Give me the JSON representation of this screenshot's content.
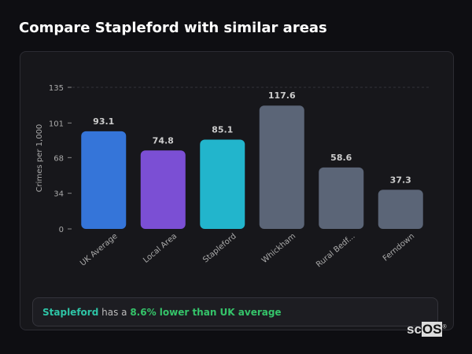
{
  "title": "Compare Stapleford with similar areas",
  "chart_data": {
    "type": "bar",
    "ylabel": "Crimes per 1,000",
    "xlabel": "",
    "ylim": [
      0,
      135
    ],
    "yticks": [
      0,
      34,
      68,
      101,
      135
    ],
    "grid": "dashed at top tick",
    "categories": [
      "UK Average",
      "Local Area",
      "Stapleford",
      "Whickham",
      "Rural Bedf...",
      "Ferndown"
    ],
    "values": [
      93.1,
      74.8,
      85.1,
      117.6,
      58.6,
      37.3
    ],
    "value_labels": [
      "93.1",
      "74.8",
      "85.1",
      "117.6",
      "58.6",
      "37.3"
    ],
    "colors": [
      "#3575d9",
      "#7b4fd4",
      "#22b5cc",
      "#5b6577",
      "#5b6577",
      "#5b6577"
    ]
  },
  "callout": {
    "area": "Stapleford",
    "middle": " has a ",
    "highlight": "8.6% lower than UK average",
    "area_color": "#2ec4a6",
    "highlight_color": "#35c46a"
  },
  "logo": {
    "text_a": "sc",
    "text_b": "OS",
    "mark": "®"
  }
}
